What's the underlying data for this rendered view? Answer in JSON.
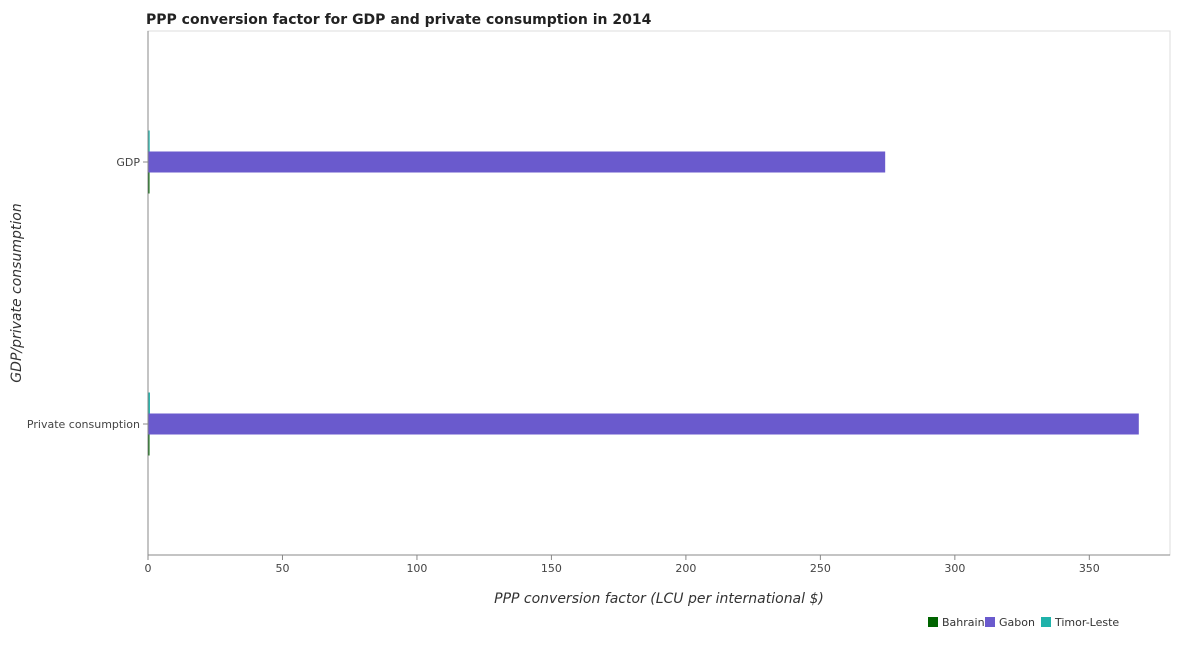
{
  "chart_data": {
    "type": "bar",
    "orientation": "horizontal",
    "title": "PPP conversion factor for GDP and private consumption in 2014",
    "xlabel": "PPP conversion factor (LCU per international $)",
    "ylabel": "GDP/private consumption",
    "categories": [
      "GDP",
      " Private consumption"
    ],
    "xlim": [
      0,
      380
    ],
    "xticks": [
      0,
      50,
      100,
      150,
      200,
      250,
      300,
      350
    ],
    "grid": false,
    "legend_position": "bottom-right",
    "series": [
      {
        "name": "Bahrain",
        "color": "#006400",
        "values": [
          0.24,
          0.29
        ]
      },
      {
        "name": "Gabon",
        "color": "#6a5acd",
        "values": [
          274.1,
          368.4
        ]
      },
      {
        "name": "Timor-Leste",
        "color": "#20b2aa",
        "values": [
          0.62,
          0.72
        ]
      }
    ]
  }
}
